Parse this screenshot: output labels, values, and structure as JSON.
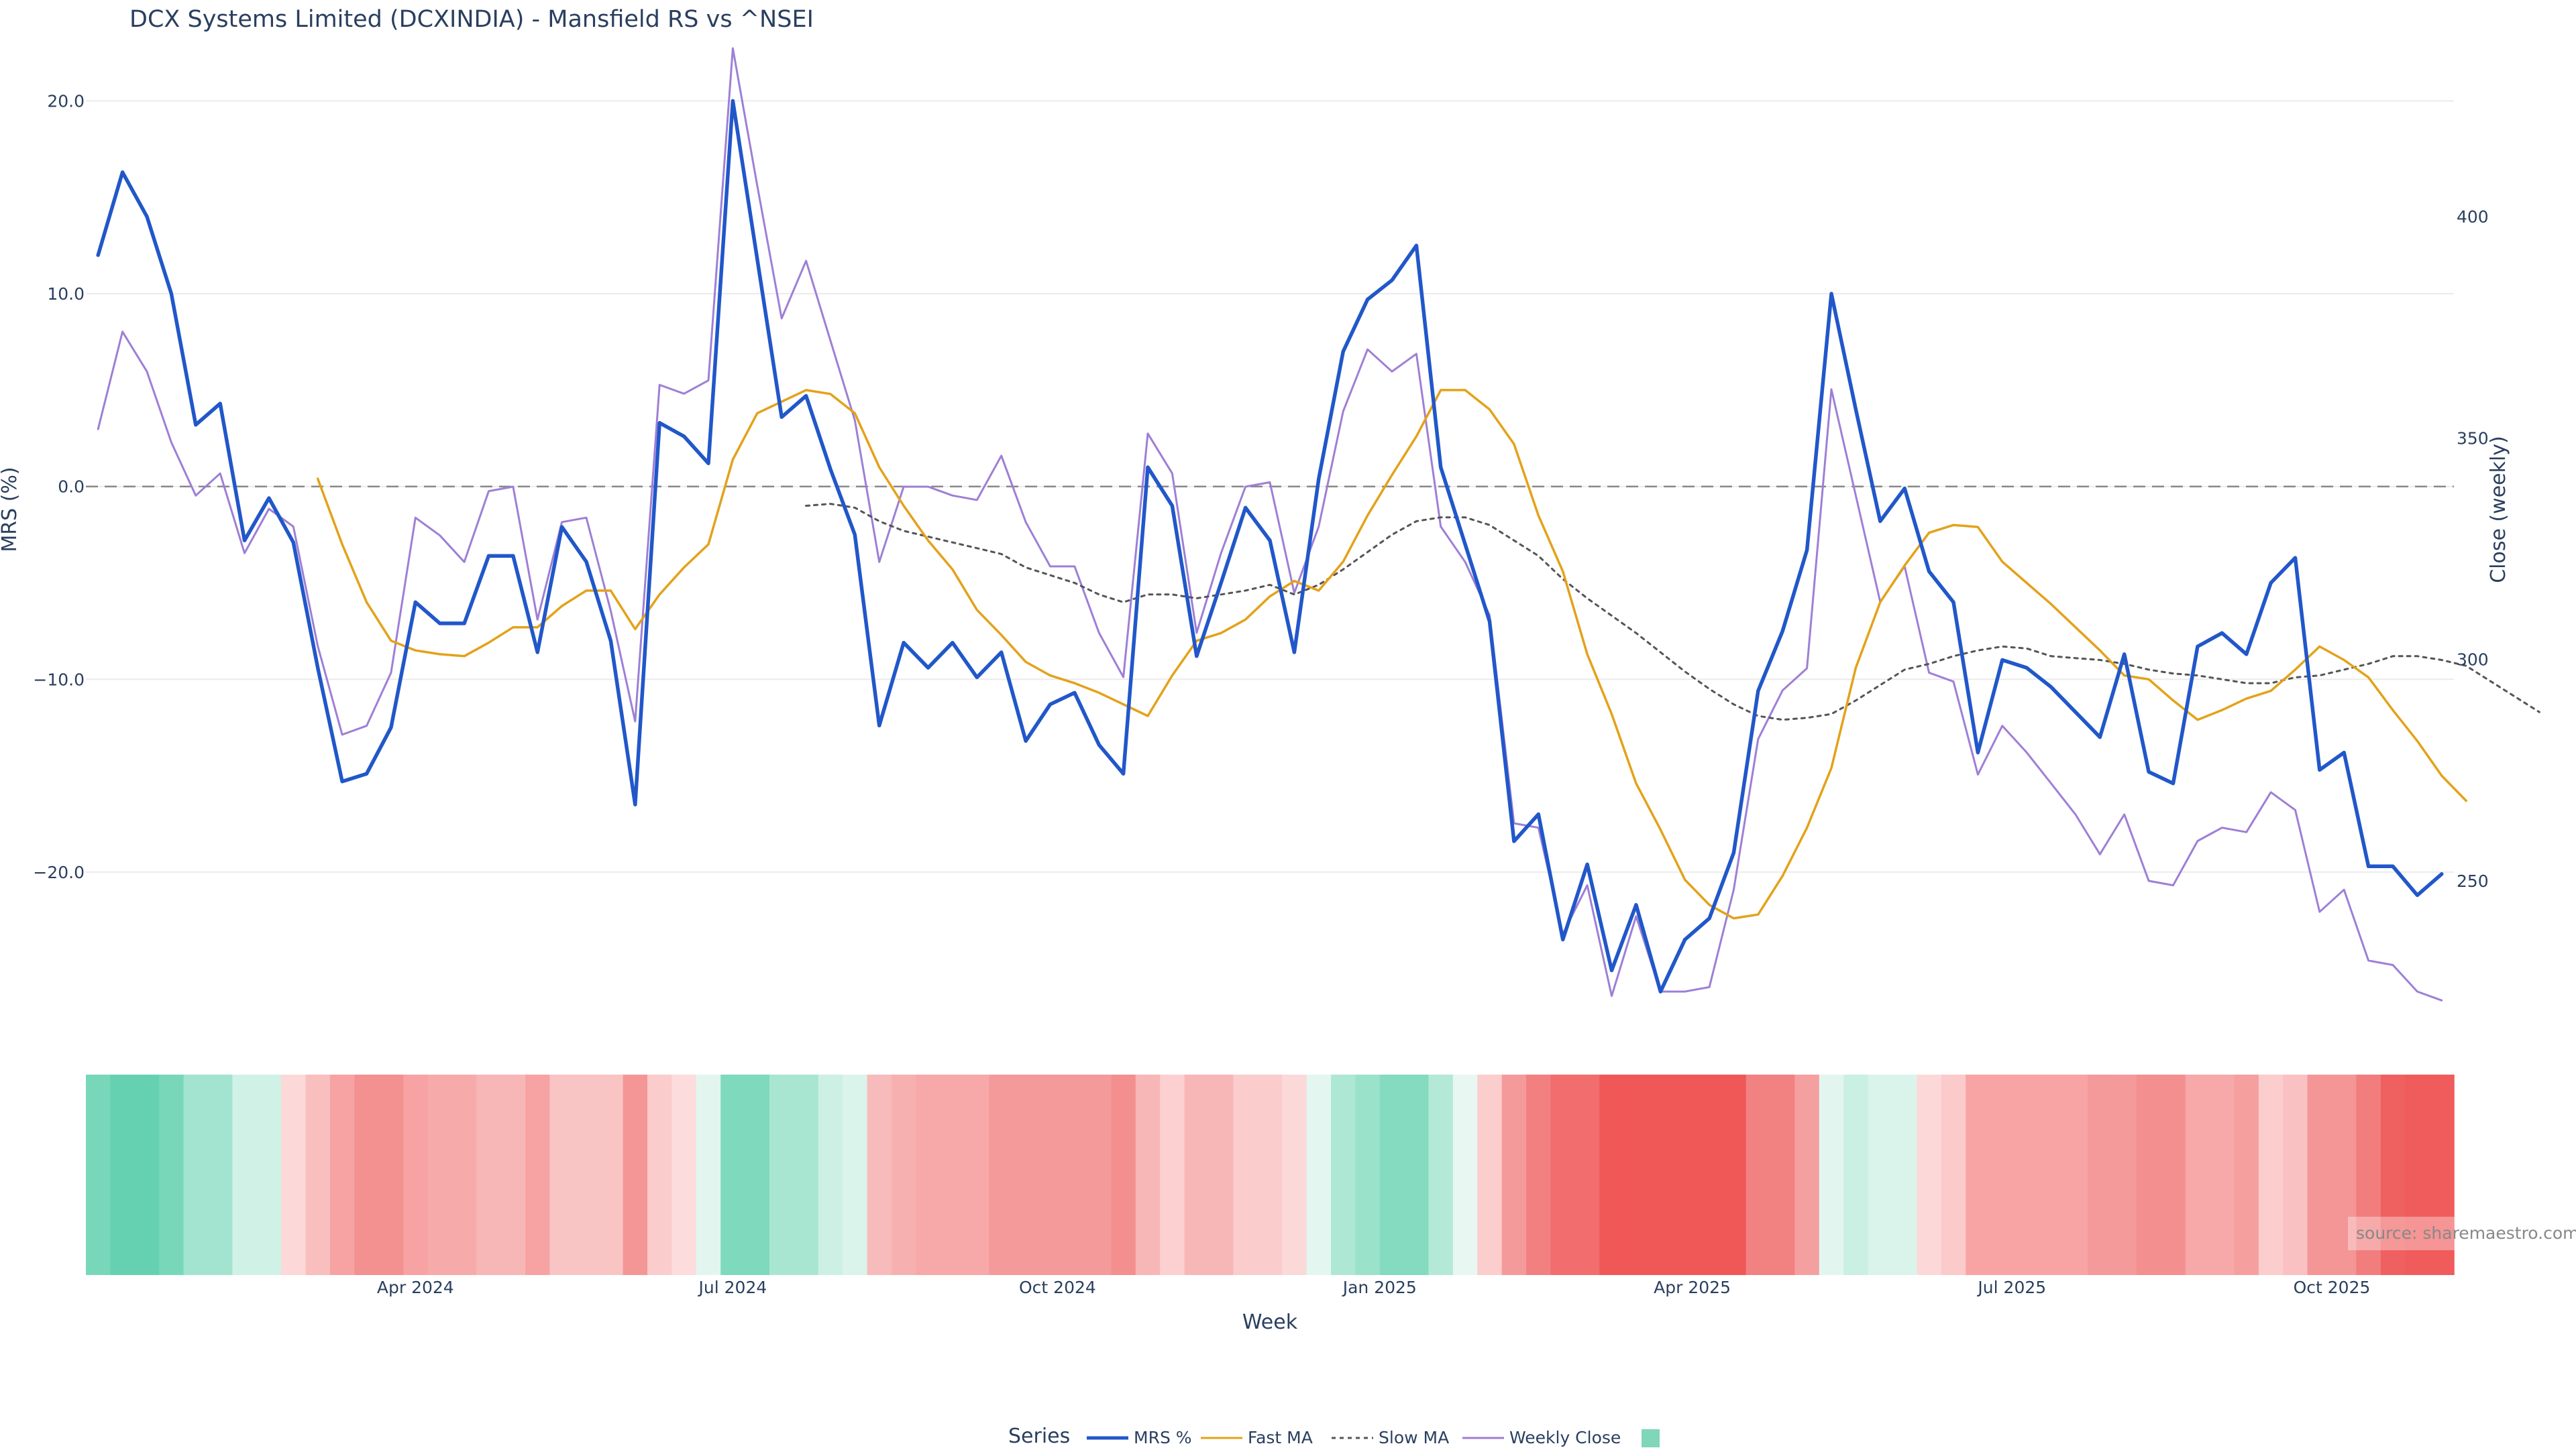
{
  "chart_data": {
    "type": "line",
    "title": "DCX Systems Limited (DCXINDIA) - Mansfield RS vs ^NSEI",
    "xlabel": "Week",
    "ylabel": "MRS (%)",
    "y2label": "Close (weekly)",
    "y_ticks": [
      20.0,
      10.0,
      0.0,
      -10.0,
      -20.0
    ],
    "y_tick_labels": [
      "20.0",
      "10.0",
      "0.0",
      "−10.0",
      "−20.0"
    ],
    "ylim": [
      -30.4,
      22.8
    ],
    "y2_ticks": [
      250,
      300,
      350,
      400
    ],
    "y2lim": [
      206.7,
      438.3
    ],
    "x_ticks": [
      {
        "week": 13,
        "label": "Apr 2024"
      },
      {
        "week": 26,
        "label": "Jul 2024"
      },
      {
        "week": 39.3,
        "label": "Oct 2024"
      },
      {
        "week": 52.5,
        "label": "Jan 2025"
      },
      {
        "week": 65.3,
        "label": "Apr 2025"
      },
      {
        "week": 78.4,
        "label": "Jul 2025"
      },
      {
        "week": 91.5,
        "label": "Oct 2025"
      }
    ],
    "xlim": [
      -0.5,
      96.5
    ],
    "grid": true,
    "zero_line": 0,
    "legend_placement": "bottom-center",
    "source_text": "source: sharemaestro.com",
    "colors": {
      "mrs": "#2157c9",
      "fast_ma": "#e3a21a",
      "slow_ma": "#555555",
      "close": "#9e7fd6",
      "legend_heat": "#7fd6b8"
    },
    "series": [
      {
        "name": "MRS %",
        "axis": "left",
        "color": "#2157c9",
        "x_start": 0,
        "values": [
          12.0,
          16.3,
          14.0,
          10.0,
          3.2,
          4.3,
          -2.8,
          -0.6,
          -2.9,
          -9.4,
          -15.3,
          -14.9,
          -12.5,
          -6.0,
          -7.1,
          -7.1,
          -3.6,
          -3.6,
          -8.6,
          -2.1,
          -3.9,
          -8.0,
          -16.5,
          3.3,
          2.6,
          1.2,
          20.0,
          11.8,
          3.6,
          4.7,
          0.9,
          -2.5,
          -12.4,
          -8.1,
          -9.4,
          -8.1,
          -9.9,
          -8.6,
          -13.2,
          -11.3,
          -10.7,
          -13.4,
          -14.9,
          1.0,
          -1.0,
          -8.8,
          -5.0,
          -1.1,
          -2.8,
          -8.6,
          0.4,
          7.0,
          9.7,
          10.7,
          12.5,
          1.0,
          -3.0,
          -7.0,
          -18.4,
          -17.0,
          -23.5,
          -19.6,
          -25.1,
          -21.7,
          -26.2,
          -23.5,
          -22.4,
          -19.0,
          -10.6,
          -7.5,
          -3.3,
          10.0,
          4.0,
          -1.8,
          -0.1,
          -4.4,
          -6.0,
          -13.8,
          -9.0,
          -9.4,
          -10.4,
          -11.7,
          -13.0,
          -8.7,
          -14.8,
          -15.4,
          -8.3,
          -7.6,
          -8.7,
          -5.0,
          -3.7,
          -14.7,
          -13.8,
          -19.7,
          -19.7,
          -21.2,
          -20.1
        ]
      },
      {
        "name": "Fast MA",
        "axis": "left",
        "color": "#e3a21a",
        "x_start": 9,
        "values": [
          0.4,
          -3.0,
          -6.0,
          -8.0,
          -8.5,
          -8.7,
          -8.8,
          -8.1,
          -7.3,
          -7.3,
          -6.2,
          -5.4,
          -5.4,
          -7.4,
          -5.6,
          -4.2,
          -3.0,
          1.4,
          3.8,
          4.4,
          5.0,
          4.8,
          3.8,
          1.0,
          -1.0,
          -2.8,
          -4.3,
          -6.4,
          -7.7,
          -9.1,
          -9.8,
          -10.2,
          -10.7,
          -11.3,
          -11.9,
          -9.8,
          -8.0,
          -7.6,
          -6.9,
          -5.7,
          -4.9,
          -5.4,
          -3.9,
          -1.5,
          0.6,
          2.6,
          5.0,
          5.0,
          4.0,
          2.2,
          -1.5,
          -4.4,
          -8.7,
          -11.8,
          -15.4,
          -17.8,
          -20.4,
          -21.7,
          -22.4,
          -22.2,
          -20.2,
          -17.7,
          -14.6,
          -9.4,
          -6.0,
          -4.1,
          -2.4,
          -2.0,
          -2.1,
          -3.9,
          -5.0,
          -6.1,
          -7.3,
          -8.5,
          -9.8,
          -10.0,
          -11.1,
          -12.1,
          -11.6,
          -11.0,
          -10.6,
          -9.5,
          -8.3,
          -9.0,
          -9.9,
          -11.6,
          -13.2,
          -15.0,
          -16.3
        ]
      },
      {
        "name": "Slow MA",
        "axis": "left",
        "color": "#555555",
        "dashed": true,
        "x_start": 29,
        "values": [
          -1.0,
          -0.9,
          -1.1,
          -1.8,
          -2.3,
          -2.6,
          -2.9,
          -3.2,
          -3.5,
          -4.2,
          -4.6,
          -5.0,
          -5.6,
          -6.0,
          -5.6,
          -5.6,
          -5.8,
          -5.6,
          -5.4,
          -5.1,
          -5.6,
          -5.1,
          -4.3,
          -3.4,
          -2.5,
          -1.8,
          -1.6,
          -1.6,
          -2.0,
          -2.8,
          -3.6,
          -4.8,
          -5.8,
          -6.7,
          -7.6,
          -8.6,
          -9.6,
          -10.5,
          -11.3,
          -11.9,
          -12.1,
          -12.0,
          -11.8,
          -11.1,
          -10.3,
          -9.5,
          -9.2,
          -8.8,
          -8.5,
          -8.3,
          -8.4,
          -8.8,
          -8.9,
          -9.0,
          -9.2,
          -9.5,
          -9.7,
          -9.8,
          -10.0,
          -10.2,
          -10.2,
          -9.9,
          -9.8,
          -9.5,
          -9.2,
          -8.8,
          -8.8,
          -9.0,
          -9.3,
          -10.1,
          -10.9,
          -11.7
        ]
      },
      {
        "name": "Weekly Close",
        "axis": "right",
        "color": "#9e7fd6",
        "x_start": 0,
        "values": [
          352,
          374,
          365,
          349,
          337,
          342,
          324,
          334,
          330,
          303,
          283,
          285,
          297,
          332,
          328,
          322,
          338,
          339,
          309,
          331,
          332,
          311,
          286,
          362,
          360,
          363,
          438,
          407,
          377,
          390,
          372,
          354,
          322,
          339,
          339,
          337,
          336,
          346,
          331,
          321,
          321,
          306,
          296,
          351,
          342,
          306,
          324,
          339,
          340,
          315,
          330,
          356,
          370,
          365,
          369,
          330,
          322,
          310,
          263,
          262,
          238,
          249,
          224,
          242,
          225,
          225,
          226,
          248,
          282,
          293,
          298,
          361,
          337,
          313,
          321,
          297,
          295,
          274,
          285,
          279,
          272,
          265,
          256,
          265,
          250,
          249,
          259,
          262,
          261,
          270,
          266,
          243,
          248,
          232,
          231,
          225,
          223
        ]
      }
    ],
    "heatmap_strip": {
      "name": "MRS heatmap",
      "x_start": 0,
      "colors": [
        "#78d7b9",
        "#66d1b1",
        "#66d1b1",
        "#78d7b9",
        "#a2e4cf",
        "#a2e4cf",
        "#d0f2e6",
        "#d0f2e6",
        "#fdd8d8",
        "#f9bebe",
        "#f7a3a3",
        "#f39090",
        "#f39090",
        "#f7a3a3",
        "#f6aaaa",
        "#f6aaaa",
        "#f8b7b7",
        "#f8b7b7",
        "#f7a3a3",
        "#f9c4c4",
        "#f9c4c4",
        "#f9c4c4",
        "#f59696",
        "#fbcccc",
        "#fcdcdc",
        "#e2f6ef",
        "#7fd9bc",
        "#7fd9bc",
        "#a9e6d2",
        "#a9e6d2",
        "#cdf0e4",
        "#daf4eb",
        "#f8bbbb",
        "#f7b0b0",
        "#f7a8a8",
        "#f7a8a8",
        "#f7a8a8",
        "#f49a9a",
        "#f49a9a",
        "#f49a9a",
        "#f49a9a",
        "#f49a9a",
        "#f38f8f",
        "#f8b7b7",
        "#fcd0d0",
        "#f8b7b7",
        "#f8b7b7",
        "#fbcccc",
        "#fbcccc",
        "#fcd9d9",
        "#e3f6f0",
        "#aee8d4",
        "#9be2cb",
        "#84dbbf",
        "#84dbbf",
        "#b4e9d7",
        "#e8f7f2",
        "#fbcdcd",
        "#f59a9a",
        "#f28080",
        "#f26d6d",
        "#f26d6d",
        "#f05757",
        "#f05757",
        "#f05757",
        "#f05757",
        "#f05757",
        "#f05757",
        "#f28181",
        "#f28181",
        "#f5a0a0",
        "#e2f6ef",
        "#caefe3",
        "#daf4eb",
        "#daf4eb",
        "#fdd8d8",
        "#fbcaca",
        "#f8a4a4",
        "#f8a4a4",
        "#f8a4a4",
        "#f8a4a4",
        "#f8a4a4",
        "#f49a9a",
        "#f59a9a",
        "#f38f8f",
        "#f38f8f",
        "#f7a8a8",
        "#f7a8a8",
        "#f59f9f",
        "#fbcdcd",
        "#f9c1c1",
        "#f49696",
        "#f49696",
        "#f27d7d",
        "#ef6161",
        "#f05c5c",
        "#f05c5c"
      ]
    },
    "legend": {
      "title": "Series",
      "entries": [
        "MRS %",
        "Fast MA",
        "Slow MA",
        "Weekly Close",
        ""
      ]
    }
  }
}
